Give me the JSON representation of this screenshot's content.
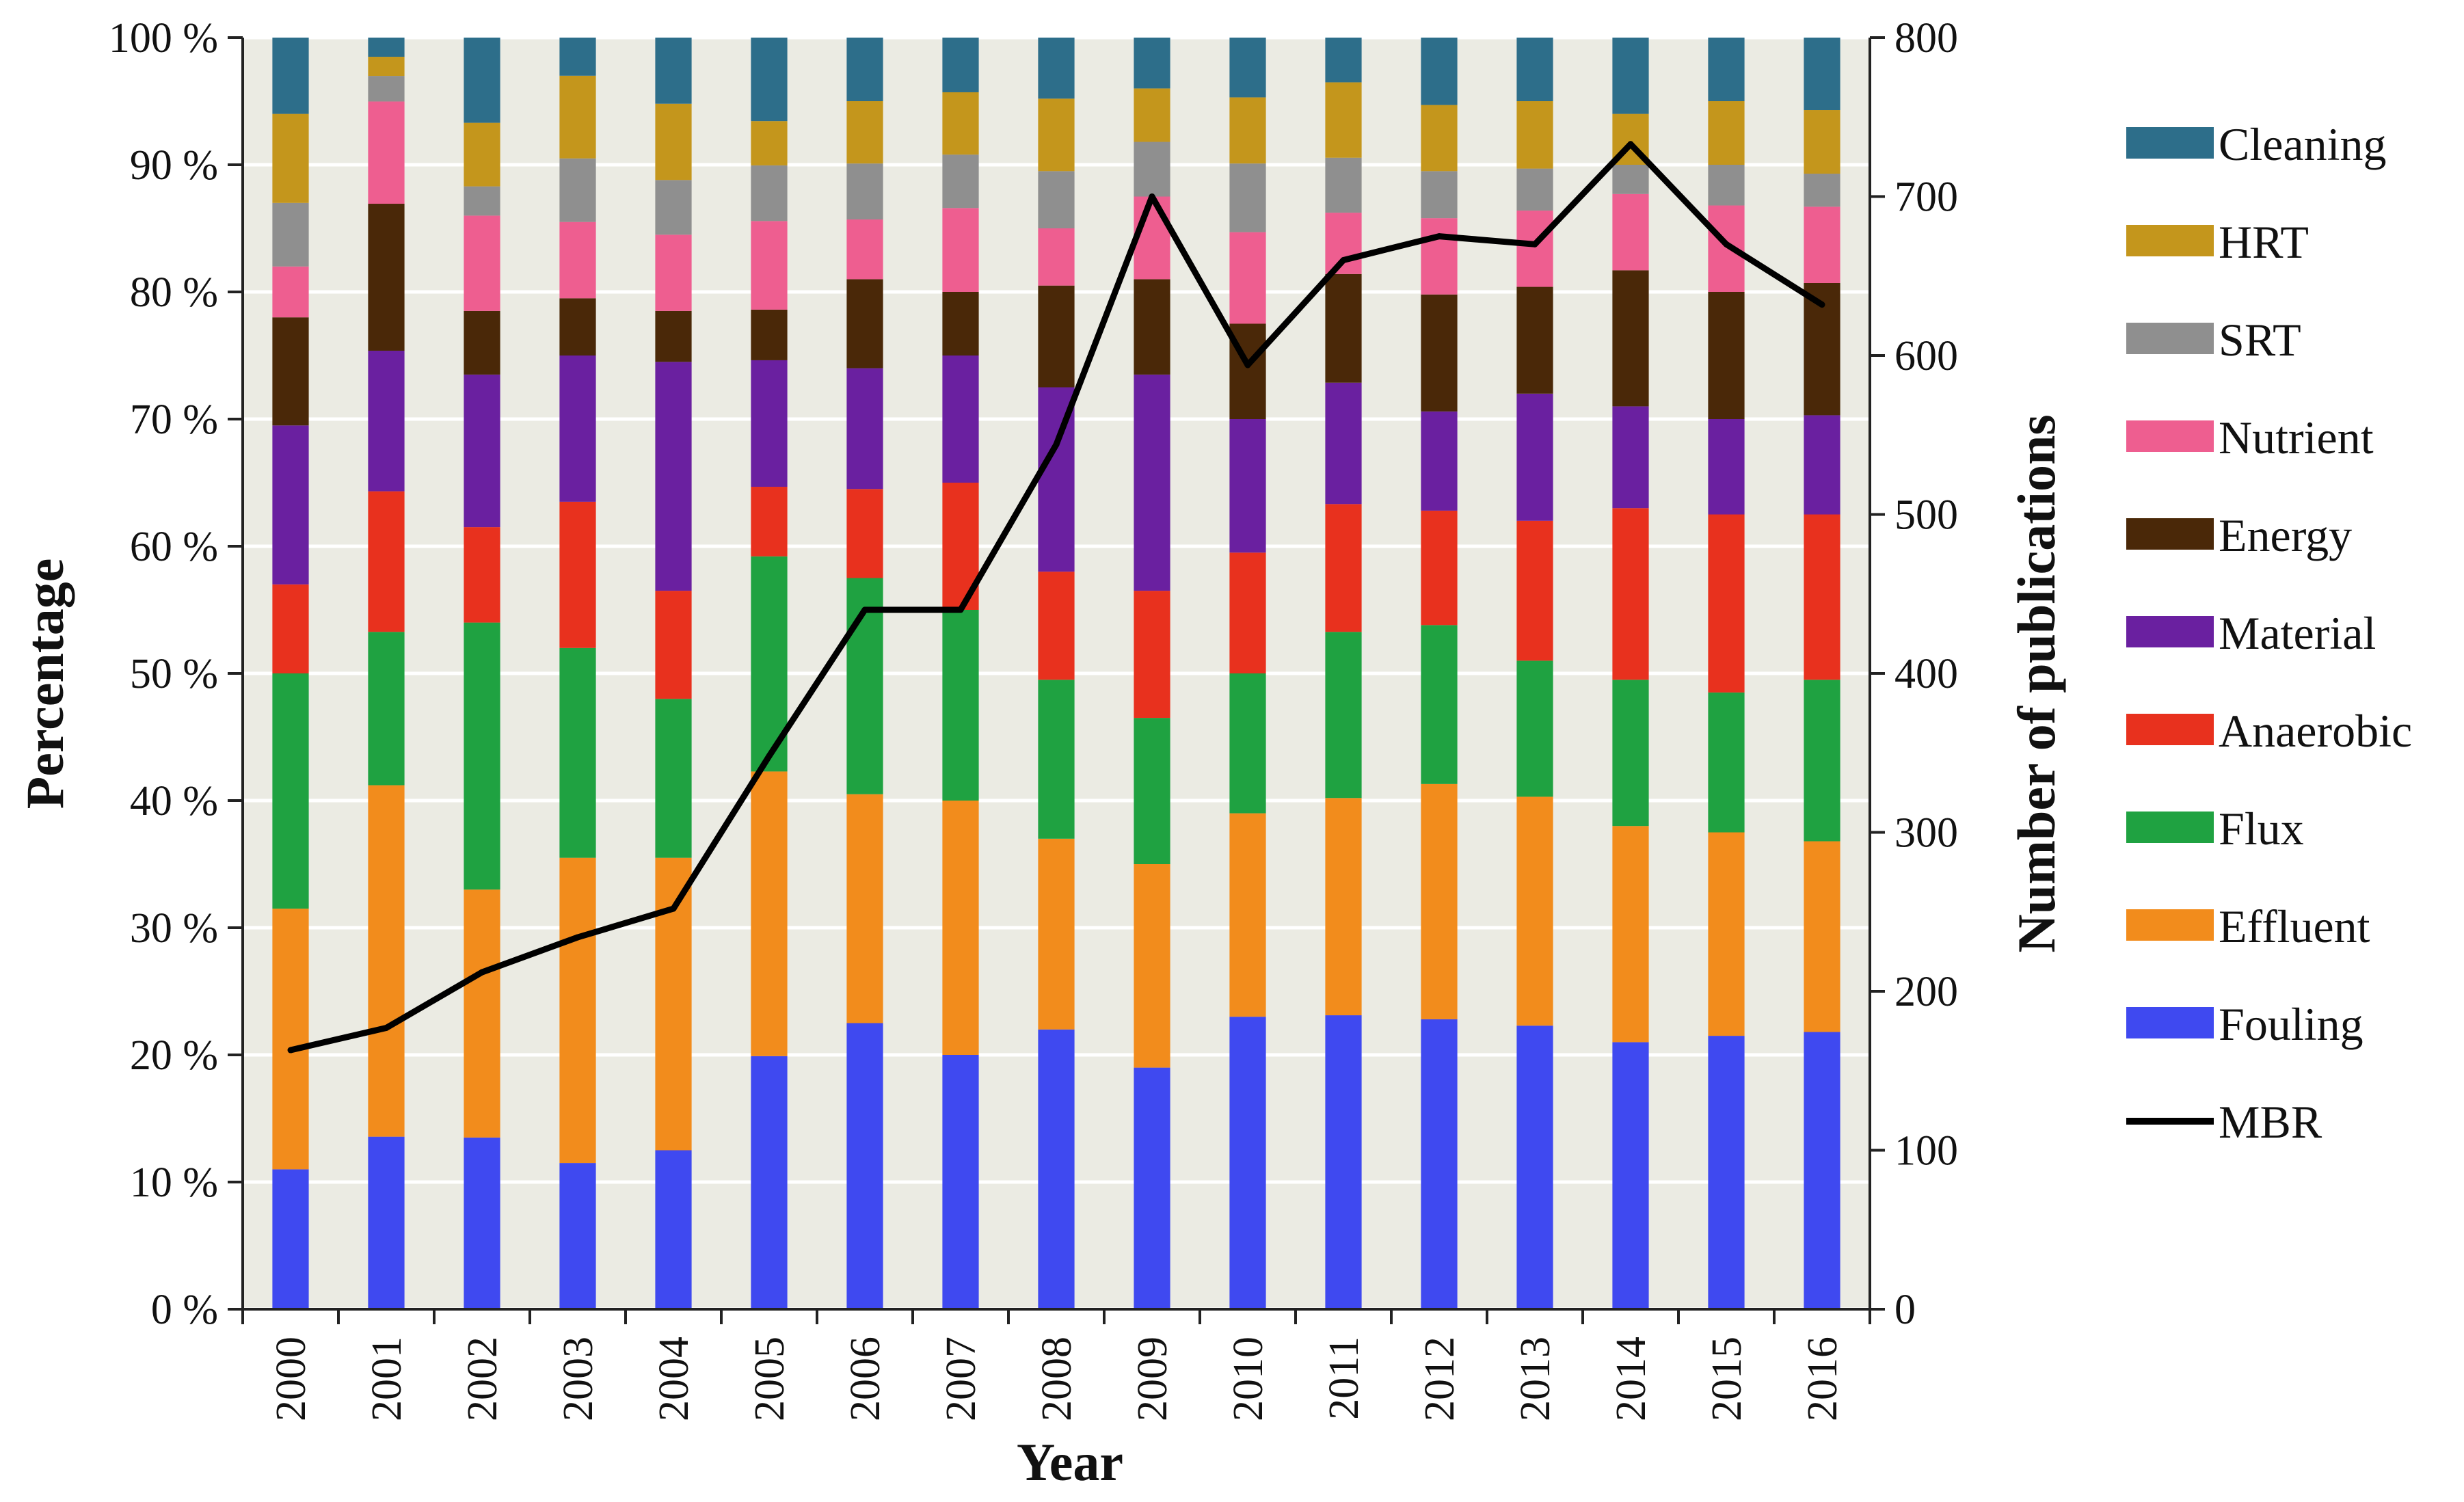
{
  "chart_data": {
    "type": "bar",
    "stacked": true,
    "normalized_percent": true,
    "categories": [
      "2000",
      "2001",
      "2002",
      "2003",
      "2004",
      "2005",
      "2006",
      "2007",
      "2008",
      "2009",
      "2010",
      "2011",
      "2012",
      "2013",
      "2014",
      "2015",
      "2016"
    ],
    "series": [
      {
        "name": "Fouling",
        "color": "#3f49f0",
        "values": [
          11,
          13.5,
          13.5,
          11.5,
          12.5,
          20,
          22.5,
          20,
          22,
          19,
          23,
          23,
          22.8,
          22.3,
          21,
          21.5,
          21.8
        ]
      },
      {
        "name": "Effluent",
        "color": "#f28c1c",
        "values": [
          20.5,
          27.5,
          19.5,
          24,
          23,
          22.5,
          18,
          20,
          15,
          16,
          16,
          17,
          18.5,
          18,
          17,
          16,
          15
        ]
      },
      {
        "name": "Flux",
        "color": "#1fa241",
        "values": [
          18.5,
          12,
          21,
          16.5,
          12.5,
          17,
          17,
          15,
          12.5,
          11.5,
          11,
          13,
          12.5,
          10.7,
          11.5,
          11,
          12.7
        ]
      },
      {
        "name": "Anaerobic",
        "color": "#e8311e",
        "values": [
          7,
          11,
          7.5,
          11.5,
          8.5,
          5.5,
          7,
          10,
          8.5,
          10,
          9.5,
          10,
          9,
          11,
          13.5,
          14,
          13
        ]
      },
      {
        "name": "Material",
        "color": "#6a20a0",
        "values": [
          12.5,
          11,
          12,
          11.5,
          18,
          10,
          9.5,
          10,
          14.5,
          17,
          10.5,
          9.5,
          7.8,
          10,
          8,
          7.5,
          7.8
        ]
      },
      {
        "name": "Energy",
        "color": "#4a2808",
        "values": [
          8.5,
          11.5,
          5,
          4.5,
          4,
          4,
          7,
          5,
          8,
          7.5,
          7.5,
          8.5,
          9.2,
          8.4,
          10.7,
          10,
          10.4
        ]
      },
      {
        "name": "Nutrient",
        "color": "#ee5e90",
        "values": [
          4,
          8,
          7.5,
          6,
          6,
          7,
          4.7,
          6.6,
          4.5,
          6.5,
          7.2,
          4.8,
          6,
          6,
          6,
          6.8,
          6
        ]
      },
      {
        "name": "SRT",
        "color": "#8f8f8f",
        "values": [
          5,
          2,
          2.3,
          5,
          4.3,
          4.4,
          4.4,
          4.2,
          4.5,
          4.3,
          5.4,
          4.3,
          3.7,
          3.3,
          2.3,
          3.2,
          2.6
        ]
      },
      {
        "name": "HRT",
        "color": "#c4961c",
        "values": [
          7,
          1.5,
          5,
          6.5,
          6,
          3.5,
          4.9,
          4.9,
          5.7,
          4.2,
          5.2,
          5.9,
          5.2,
          5.3,
          4,
          5.0,
          5
        ]
      },
      {
        "name": "Cleaning",
        "color": "#2d6e8a",
        "values": [
          6,
          1.5,
          6.7,
          3,
          5.2,
          6.6,
          5,
          4.3,
          4.8,
          4,
          4.7,
          3.5,
          5.3,
          5,
          6,
          5,
          5.7
        ]
      }
    ],
    "line_series": {
      "name": "MBR",
      "color": "#000000",
      "axis": "right",
      "values": [
        163,
        177,
        212,
        234,
        252,
        348,
        440,
        440,
        544,
        700,
        594,
        660,
        675,
        670,
        733,
        670,
        632
      ]
    },
    "xlabel": "Year",
    "ylabel": "Percentage",
    "y2label": "Number of publications",
    "ylim": [
      0,
      100
    ],
    "y2lim": [
      0,
      800
    ],
    "y_ticks": [
      "0 %",
      "10 %",
      "20 %",
      "30 %",
      "40 %",
      "50 %",
      "60 %",
      "70 %",
      "80 %",
      "90 %",
      "100 %"
    ],
    "y2_ticks": [
      "0",
      "100",
      "200",
      "300",
      "400",
      "500",
      "600",
      "700",
      "800"
    ],
    "legend_order": [
      "Cleaning",
      "HRT",
      "SRT",
      "Nutrient",
      "Energy",
      "Material",
      "Anaerobic",
      "Flux",
      "Effluent",
      "Fouling",
      "MBR"
    ],
    "legend_position": "right",
    "plot_background": "#ebebe3",
    "grid": "horizontal"
  }
}
